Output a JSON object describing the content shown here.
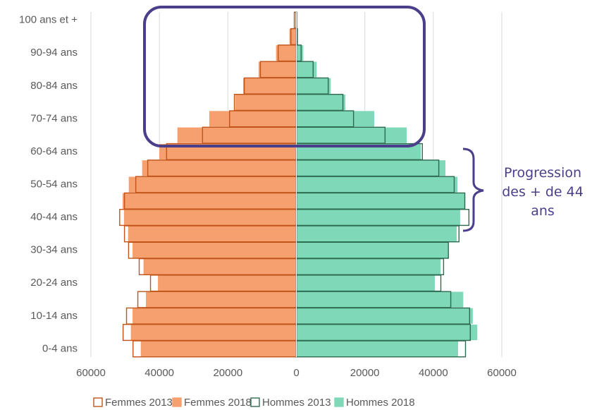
{
  "chart_data": {
    "type": "pyramid",
    "categories": [
      "0-4 ans",
      null,
      "10-14 ans",
      null,
      "20-24 ans",
      null,
      "30-34 ans",
      null,
      "40-44 ans",
      null,
      "50-54 ans",
      null,
      "60-64 ans",
      null,
      "70-74 ans",
      null,
      "80-84 ans",
      null,
      "90-94 ans",
      null,
      "100 ans et +"
    ],
    "series": [
      {
        "name": "Femmes 2013",
        "color": "#c0541a",
        "side": "left",
        "style": "outline",
        "values": [
          47700,
          50600,
          49600,
          46300,
          42600,
          45900,
          49000,
          50200,
          51600,
          50200,
          46900,
          43400,
          37900,
          27400,
          19500,
          18100,
          15200,
          10500,
          5300,
          1600,
          600
        ]
      },
      {
        "name": "Femmes 2018",
        "color": "#f6a06f",
        "side": "left",
        "style": "fill",
        "values": [
          45500,
          48400,
          47900,
          44000,
          40500,
          44700,
          47900,
          49200,
          50400,
          50800,
          49000,
          45100,
          40100,
          34800,
          25500,
          17900,
          15600,
          11100,
          6000,
          2100,
          400
        ]
      },
      {
        "name": "Hommes 2013",
        "color": "#2e6b50",
        "side": "right",
        "style": "outline",
        "values": [
          49400,
          50800,
          50600,
          45100,
          42200,
          43000,
          44400,
          47500,
          50400,
          49200,
          46100,
          41600,
          36800,
          25900,
          16700,
          13600,
          9300,
          4900,
          1400,
          300,
          100
        ]
      },
      {
        "name": "Hommes 2018",
        "color": "#7fd8b8",
        "side": "right",
        "style": "fill",
        "values": [
          47300,
          52900,
          51600,
          48800,
          40500,
          42200,
          44400,
          46900,
          47900,
          49400,
          47100,
          43600,
          36400,
          32300,
          22800,
          14400,
          10100,
          6000,
          2100,
          400,
          100
        ]
      }
    ],
    "xlim": [
      -60000,
      60000
    ],
    "xticks": [
      {
        "value": -60000,
        "label": "60000"
      },
      {
        "value": -40000,
        "label": "40000"
      },
      {
        "value": -20000,
        "label": "20000"
      },
      0,
      20000,
      40000,
      60000
    ],
    "grid": true,
    "legend": "bottom",
    "annotation": "Progression des + de 44 ans"
  }
}
